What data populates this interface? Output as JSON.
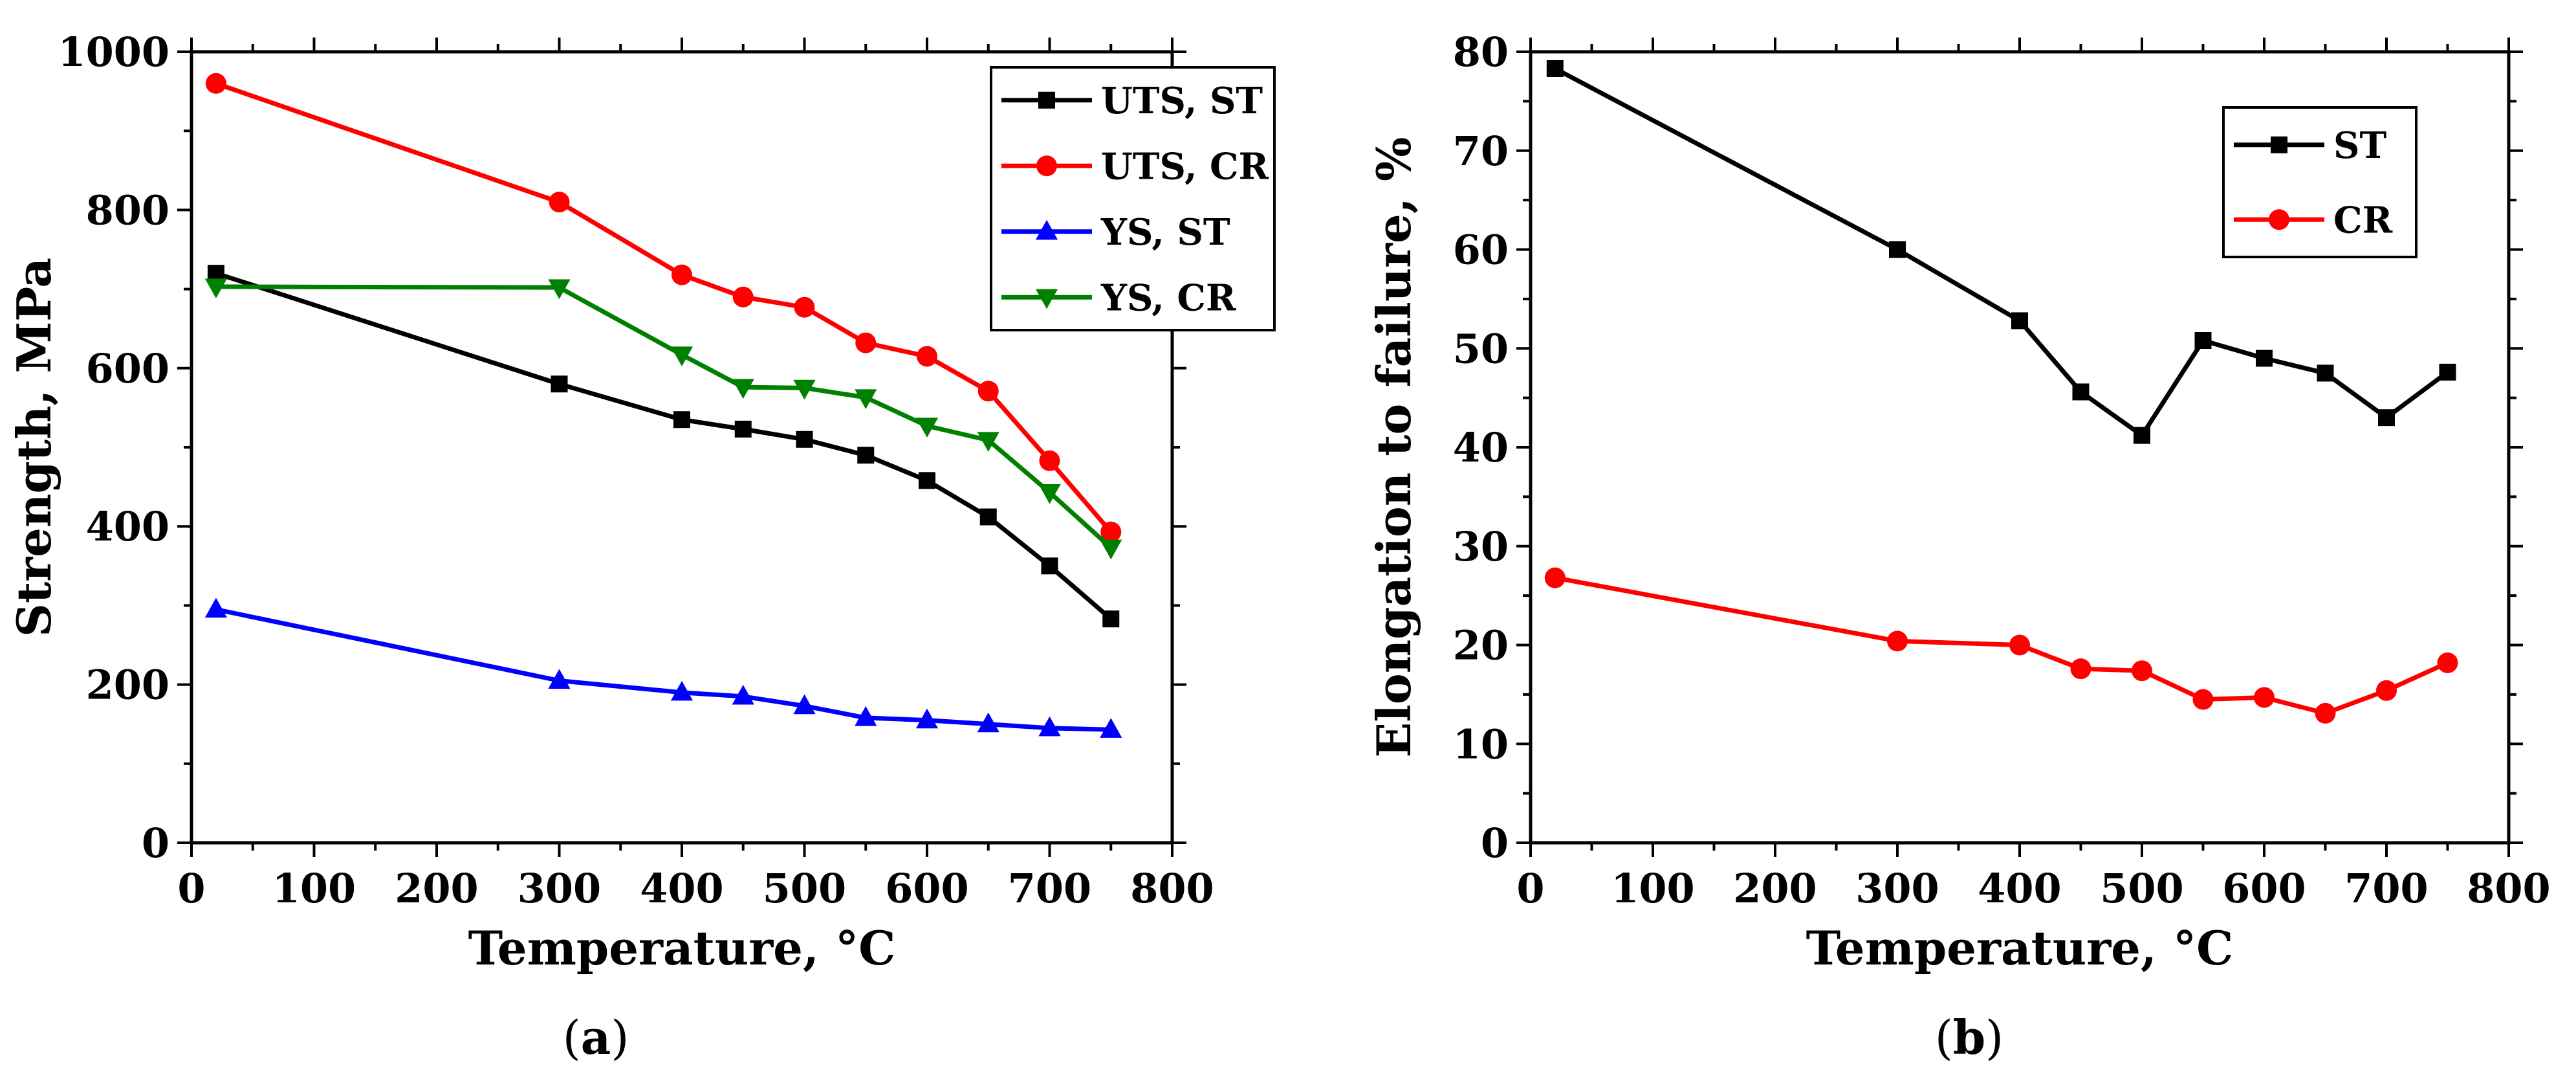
{
  "chart_data": [
    {
      "type": "line",
      "panel": "a",
      "caption_open": "(",
      "caption_letter": "a",
      "caption_close": ")",
      "title": "",
      "xlabel": "Temperature, °C",
      "ylabel": "Strength, MPa",
      "xlim": [
        0,
        800
      ],
      "ylim": [
        0,
        1000
      ],
      "xticks": [
        0,
        100,
        200,
        300,
        400,
        500,
        600,
        700,
        800
      ],
      "yticks": [
        0,
        200,
        400,
        600,
        800,
        1000
      ],
      "grid": false,
      "legend_position": "top-right",
      "series": [
        {
          "name": "UTS, ST",
          "color": "#000000",
          "marker": "square",
          "x": [
            20,
            300,
            400,
            450,
            500,
            550,
            600,
            650,
            700,
            750
          ],
          "y": [
            720,
            580,
            535,
            523,
            510,
            490,
            458,
            412,
            350,
            283
          ]
        },
        {
          "name": "UTS, CR",
          "color": "#ff0000",
          "marker": "circle",
          "x": [
            20,
            300,
            400,
            450,
            500,
            550,
            600,
            650,
            700,
            750
          ],
          "y": [
            960,
            810,
            718,
            690,
            677,
            632,
            615,
            571,
            483,
            393
          ]
        },
        {
          "name": "YS, ST",
          "color": "#0000ff",
          "marker": "triangle-up",
          "x": [
            20,
            300,
            400,
            450,
            500,
            550,
            600,
            650,
            700,
            750
          ],
          "y": [
            295,
            205,
            190,
            185,
            173,
            158,
            155,
            150,
            145,
            143
          ]
        },
        {
          "name": "YS, CR",
          "color": "#008000",
          "marker": "triangle-down",
          "x": [
            20,
            300,
            400,
            450,
            500,
            550,
            600,
            650,
            700,
            750
          ],
          "y": [
            703,
            702,
            617,
            576,
            575,
            563,
            527,
            509,
            443,
            373
          ]
        }
      ]
    },
    {
      "type": "line",
      "panel": "b",
      "caption_open": "(",
      "caption_letter": "b",
      "caption_close": ")",
      "title": "",
      "xlabel": "Temperature, °C",
      "ylabel": "Elongation to failure, %",
      "xlim": [
        0,
        800
      ],
      "ylim": [
        0,
        80
      ],
      "xticks": [
        0,
        100,
        200,
        300,
        400,
        500,
        600,
        700,
        800
      ],
      "yticks": [
        0,
        10,
        20,
        30,
        40,
        50,
        60,
        70,
        80
      ],
      "grid": false,
      "legend_position": "top-right",
      "series": [
        {
          "name": "ST",
          "color": "#000000",
          "marker": "square",
          "x": [
            20,
            300,
            400,
            450,
            500,
            550,
            600,
            650,
            700,
            750
          ],
          "y": [
            78.3,
            60.0,
            52.8,
            45.6,
            41.2,
            50.8,
            49.0,
            47.5,
            43.0,
            47.6
          ]
        },
        {
          "name": "CR",
          "color": "#ff0000",
          "marker": "circle",
          "x": [
            20,
            300,
            400,
            450,
            500,
            550,
            600,
            650,
            700,
            750
          ],
          "y": [
            26.8,
            20.4,
            20.0,
            17.6,
            17.4,
            14.5,
            14.7,
            13.1,
            15.4,
            18.2
          ]
        }
      ]
    }
  ]
}
